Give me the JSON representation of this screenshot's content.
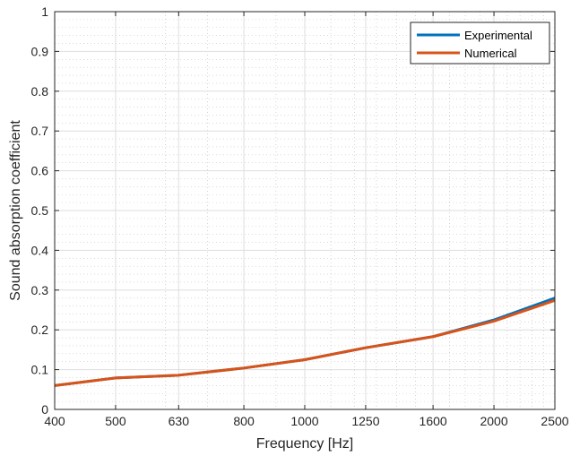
{
  "chart_data": {
    "type": "line",
    "xscale": "log",
    "xlabel": "Frequency [Hz]",
    "ylabel": "Sound absorption coefficient",
    "xlim": [
      400,
      2500
    ],
    "ylim": [
      0,
      1
    ],
    "xticks": [
      400,
      500,
      630,
      800,
      1000,
      1250,
      1600,
      2000,
      2500
    ],
    "xtick_labels": [
      "400",
      "500",
      "630",
      "800",
      "1000",
      "1250",
      "1600",
      "2000",
      "2500"
    ],
    "yticks": [
      0,
      0.1,
      0.2,
      0.3,
      0.4,
      0.5,
      0.6,
      0.7,
      0.8,
      0.9,
      1
    ],
    "ytick_labels": [
      "0",
      "0.1",
      "0.2",
      "0.3",
      "0.4",
      "0.5",
      "0.6",
      "0.7",
      "0.8",
      "0.9",
      "1"
    ],
    "grid": true,
    "minor_grid": true,
    "legend_position": "top-right",
    "x": [
      400,
      500,
      630,
      800,
      1000,
      1250,
      1600,
      2000,
      2500
    ],
    "series": [
      {
        "name": "Experimental",
        "color": "#0072BD",
        "values": [
          0.06,
          0.079,
          0.086,
          0.104,
          0.125,
          0.155,
          0.183,
          0.225,
          0.28
        ]
      },
      {
        "name": "Numerical",
        "color": "#D95319",
        "values": [
          0.06,
          0.079,
          0.086,
          0.104,
          0.125,
          0.155,
          0.183,
          0.222,
          0.274
        ]
      }
    ]
  }
}
